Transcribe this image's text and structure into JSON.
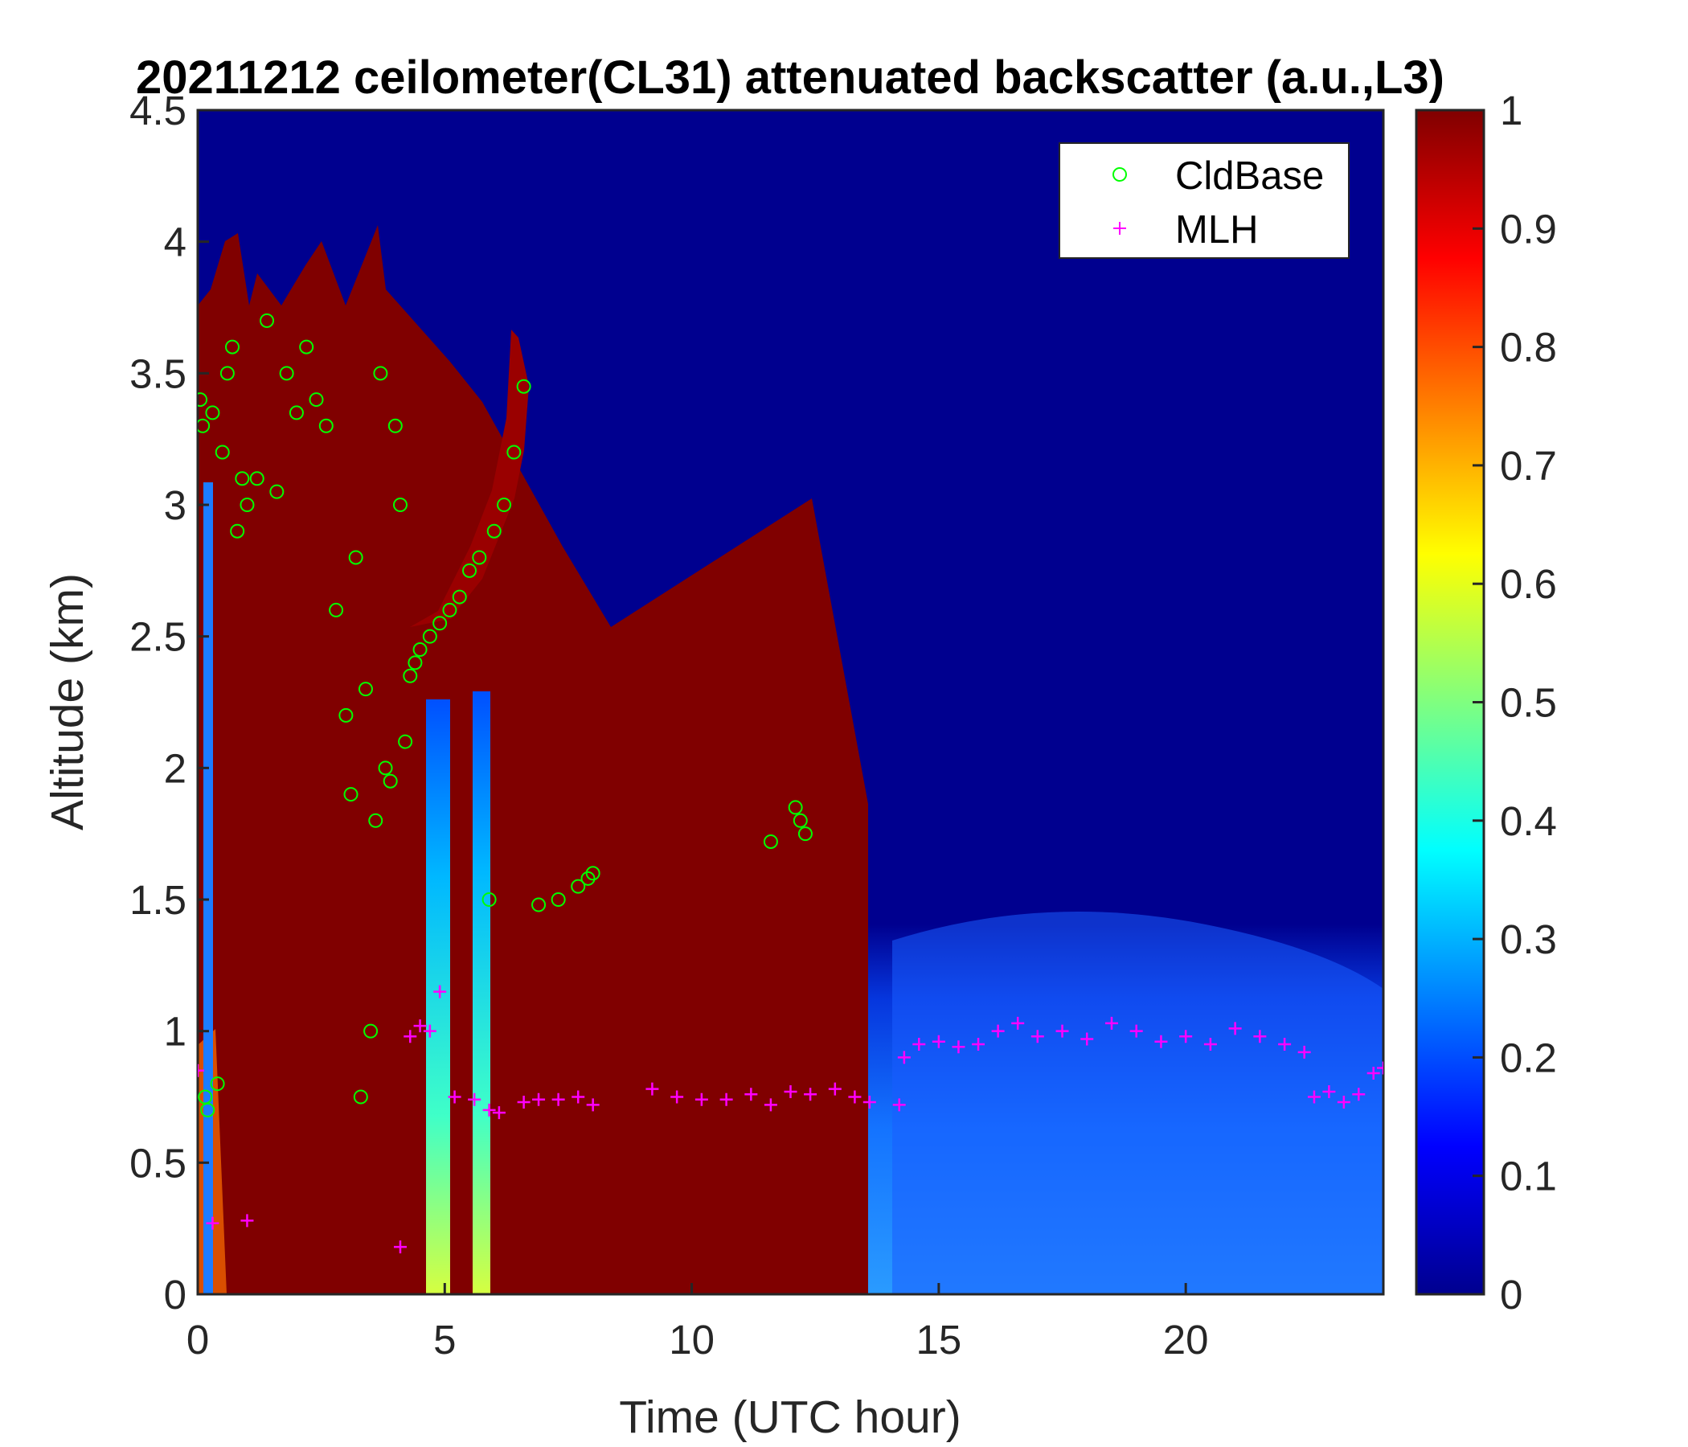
{
  "chart_data": {
    "type": "heatmap",
    "title": "20211212 ceilometer(CL31) attenuated backscatter (a.u.,L3)",
    "xlabel": "Time (UTC hour)",
    "ylabel": "Altitude (km)",
    "xlim": [
      0,
      24
    ],
    "ylim": [
      0,
      4.5
    ],
    "xticks": [
      0,
      5,
      10,
      15,
      20
    ],
    "yticks": [
      0,
      0.5,
      1,
      1.5,
      2,
      2.5,
      3,
      3.5,
      4,
      4.5
    ],
    "xtick_labels": [
      "0",
      "5",
      "10",
      "15",
      "20"
    ],
    "ytick_labels": [
      "0",
      "0.5",
      "1",
      "1.5",
      "2",
      "2.5",
      "3",
      "3.5",
      "4",
      "4.5"
    ],
    "colorbar": {
      "colormap": "jet",
      "range": [
        0,
        1
      ],
      "ticks": [
        0,
        0.1,
        0.2,
        0.3,
        0.4,
        0.5,
        0.6,
        0.7,
        0.8,
        0.9,
        1
      ],
      "tick_labels": [
        "0",
        "0.1",
        "0.2",
        "0.3",
        "0.4",
        "0.5",
        "0.6",
        "0.7",
        "0.8",
        "0.9",
        "1"
      ]
    },
    "legend": {
      "location": "top-right",
      "entries": [
        "CldBase",
        "MLH"
      ]
    },
    "grid": false,
    "series": [
      {
        "name": "CldBase",
        "marker": "circle",
        "color": "#00ff00",
        "x": [
          0.05,
          0.1,
          0.15,
          0.2,
          0.3,
          0.4,
          0.5,
          0.6,
          0.7,
          0.8,
          0.9,
          1.0,
          1.2,
          1.4,
          1.6,
          1.8,
          2.0,
          2.2,
          2.4,
          2.6,
          2.8,
          3.0,
          3.1,
          3.2,
          3.3,
          3.4,
          3.5,
          3.6,
          3.7,
          3.8,
          3.9,
          4.0,
          4.1,
          4.2,
          4.3,
          4.4,
          4.5,
          4.7,
          4.9,
          5.1,
          5.3,
          5.5,
          5.7,
          5.9,
          6.0,
          6.2,
          6.4,
          6.6,
          6.9,
          7.3,
          7.7,
          7.9,
          8.0,
          11.6,
          12.1,
          12.2,
          12.3
        ],
        "y": [
          3.4,
          3.3,
          0.75,
          0.7,
          3.35,
          0.8,
          3.2,
          3.5,
          3.6,
          2.9,
          3.1,
          3.0,
          3.1,
          3.7,
          3.05,
          3.5,
          3.35,
          3.6,
          3.4,
          3.3,
          2.6,
          2.2,
          1.9,
          2.8,
          0.75,
          2.3,
          1.0,
          1.8,
          3.5,
          2.0,
          1.95,
          3.3,
          3.0,
          2.1,
          2.35,
          2.4,
          2.45,
          2.5,
          2.55,
          2.6,
          2.65,
          2.75,
          2.8,
          1.5,
          2.9,
          3.0,
          3.2,
          3.45,
          1.48,
          1.5,
          1.55,
          1.58,
          1.6,
          1.72,
          1.85,
          1.8,
          1.75
        ]
      },
      {
        "name": "MLH",
        "marker": "plus",
        "color": "#ff00ff",
        "x": [
          0.0,
          0.3,
          1.0,
          4.1,
          4.3,
          4.5,
          4.7,
          4.9,
          5.2,
          5.6,
          5.9,
          6.1,
          6.6,
          6.9,
          7.3,
          7.7,
          8.0,
          9.2,
          9.7,
          10.2,
          10.7,
          11.2,
          11.6,
          12.0,
          12.4,
          12.9,
          13.3,
          13.6,
          14.2,
          14.3,
          14.6,
          15.0,
          15.4,
          15.8,
          16.2,
          16.6,
          17.0,
          17.5,
          18.0,
          18.5,
          19.0,
          19.5,
          20.0,
          20.5,
          21.0,
          21.5,
          22.0,
          22.4,
          22.6,
          22.9,
          23.2,
          23.5,
          23.8,
          24.0
        ],
        "y": [
          0.85,
          0.27,
          0.28,
          0.18,
          0.98,
          1.02,
          1.0,
          1.15,
          0.75,
          0.74,
          0.7,
          0.69,
          0.73,
          0.74,
          0.74,
          0.75,
          0.72,
          0.78,
          0.75,
          0.74,
          0.74,
          0.76,
          0.72,
          0.77,
          0.76,
          0.78,
          0.75,
          0.73,
          0.72,
          0.9,
          0.95,
          0.96,
          0.94,
          0.95,
          1.0,
          1.03,
          0.98,
          1.0,
          0.97,
          1.03,
          1.0,
          0.96,
          0.98,
          0.95,
          1.01,
          0.98,
          0.95,
          0.92,
          0.75,
          0.77,
          0.73,
          0.76,
          0.84,
          0.86
        ]
      }
    ]
  }
}
